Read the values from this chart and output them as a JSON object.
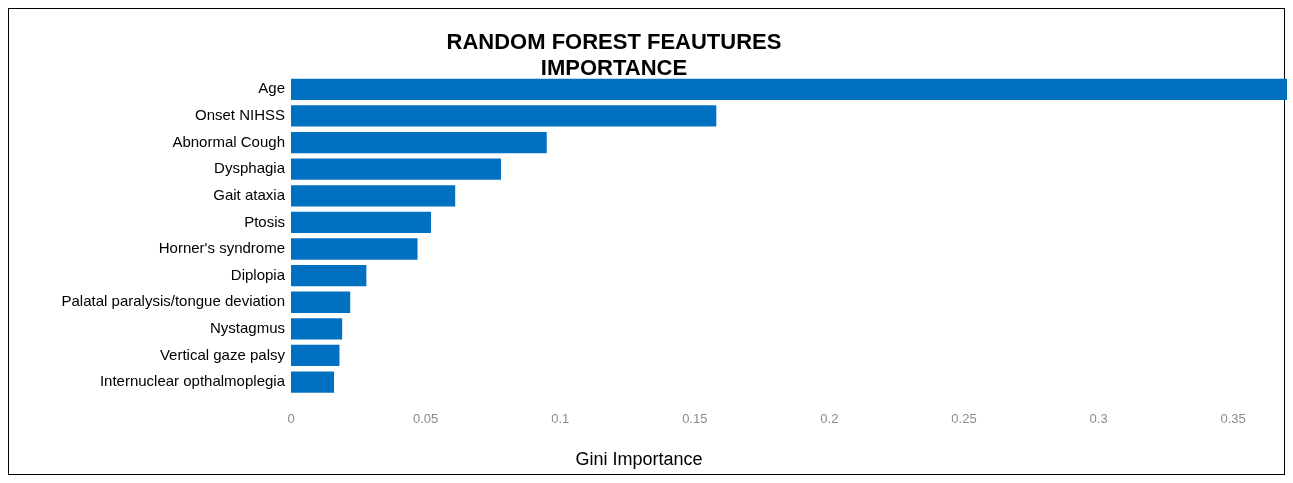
{
  "chart_data": {
    "type": "bar",
    "orientation": "horizontal",
    "title": "RANDOM FOREST FEAUTURES IMPORTANCE",
    "xlabel": "Gini Importance",
    "categories": [
      "Age",
      "Onset NIHSS",
      "Abnormal Cough",
      "Dysphagia",
      "Gait ataxia",
      "Ptosis",
      "Horner's syndrome",
      "Diplopia",
      "Palatal paralysis/tongue deviation",
      "Nystagmus",
      "Vertical gaze palsy",
      "Internuclear opthalmoplegia"
    ],
    "values": [
      0.37,
      0.158,
      0.095,
      0.078,
      0.061,
      0.052,
      0.047,
      0.028,
      0.022,
      0.019,
      0.018,
      0.016
    ],
    "color": "#0070c0",
    "xlim": [
      0,
      0.37
    ],
    "xticks": [
      0,
      0.05,
      0.1,
      0.15,
      0.2,
      0.25,
      0.3,
      0.35
    ],
    "grid": false,
    "legend": false
  }
}
